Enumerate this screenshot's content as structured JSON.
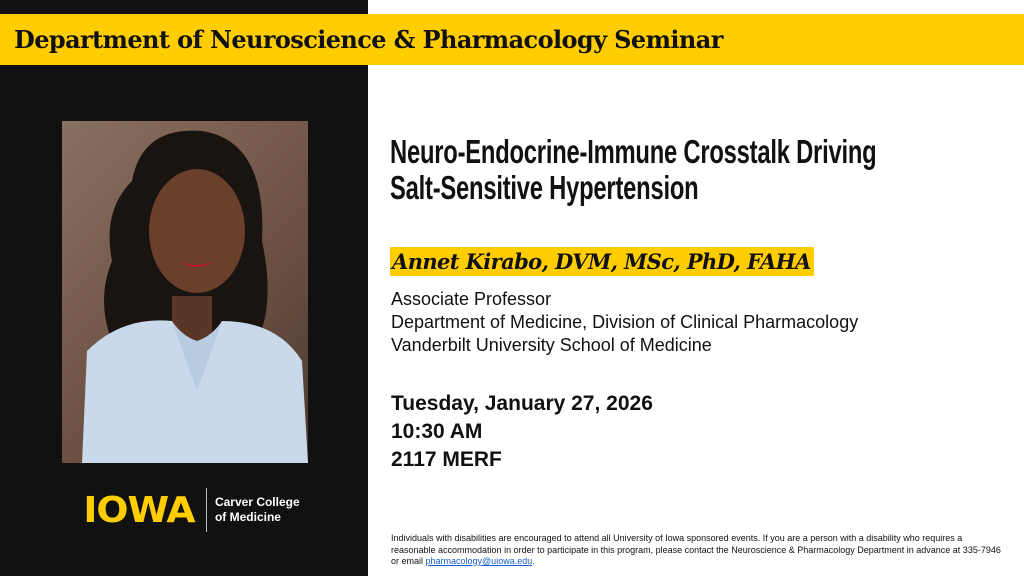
{
  "banner": {
    "title": "Department of Neuroscience & Pharmacology Seminar"
  },
  "talk": {
    "title_line1": "Neuro-Endocrine-Immune Crosstalk Driving",
    "title_line2": "Salt-Sensitive Hypertension"
  },
  "speaker": {
    "name": "Annet Kirabo, DVM, MSc, PhD, FAHA",
    "position": "Associate Professor",
    "department": "Department of Medicine, Division of Clinical Pharmacology",
    "institution": "Vanderbilt University School of Medicine"
  },
  "event": {
    "date": "Tuesday, January 27, 2026",
    "time": "10:30 AM",
    "location": "2117 MERF"
  },
  "logo": {
    "wordmark": "IOWA",
    "college_line1": "Carver College",
    "college_line2": "of Medicine"
  },
  "notice": {
    "text": "Individuals with disabilities are encouraged to attend all University of Iowa sponsored events.  If you are a person with a disability who requires a reasonable accommodation in order to participate in this program, please contact the Neuroscience & Pharmacology Department in advance at 335-7946 or email ",
    "email": "pharmacology@uiowa.edu",
    "end": "."
  },
  "colors": {
    "brand_gold": "#ffcd00",
    "panel_black": "#111111",
    "link": "#1a5fd0"
  }
}
